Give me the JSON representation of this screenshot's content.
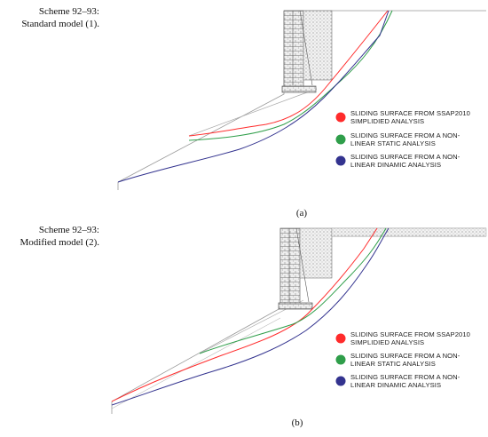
{
  "panel_a": {
    "scheme_line1": "Scheme 92–93:",
    "scheme_line2": "Standard model (1).",
    "caption": "(a)",
    "legend": [
      {
        "color": "#ff2b2b",
        "line1": "SLIDING SURFACE FROM SSAP2010",
        "line2": "SIMPLIDIED ANALYSIS"
      },
      {
        "color": "#2f9e4a",
        "line1": "SLIDING  SURFACE  FROM  A  NON-",
        "line2": "LINEAR STATIC ANALYSIS"
      },
      {
        "color": "#33338f",
        "line1": "SLIDING  SURFACE  FROM  A  NON-",
        "line2": "LINEAR DINAMIC ANALYSIS"
      }
    ]
  },
  "panel_b": {
    "scheme_line1": "Scheme 92–93:",
    "scheme_line2": "Modified model (2).",
    "caption": "(b)",
    "legend": [
      {
        "color": "#ff2b2b",
        "line1": "SLIDING SURFACE FROM SSAP2010",
        "line2": "SIMPLIDIED ANALYSIS"
      },
      {
        "color": "#2f9e4a",
        "line1": "SLIDING  SURFACE  FROM  A  NON-",
        "line2": "LINEAR STATIC ANALYSIS"
      },
      {
        "color": "#33338f",
        "line1": "SLIDING  SURFACE  FROM  A  NON-",
        "line2": "LINEAR DINAMIC ANALYSIS"
      }
    ]
  }
}
